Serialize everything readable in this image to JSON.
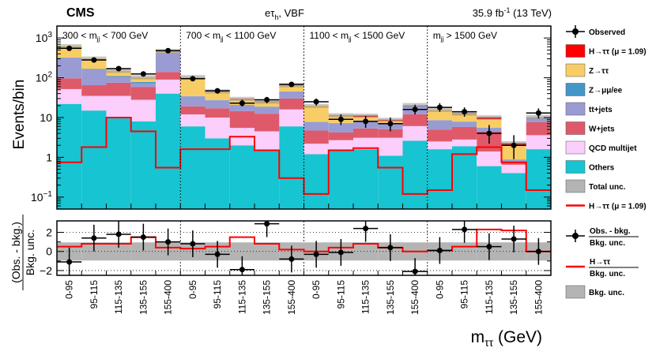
{
  "chart_data": {
    "type": "bar",
    "title": {
      "experiment": "CMS",
      "channel_main": "eτ",
      "channel_sub": "h",
      "channel_rest": ", VBF",
      "lumi_main": "35.9 fb",
      "lumi_sup": "-1",
      "lumi_rest": " (13 TeV)"
    },
    "xlabel_main": "m",
    "xlabel_sub": "ττ",
    "xlabel_rest": " (GeV)",
    "ylabel": "Events/bin",
    "ratio_ylabel_top": "(Obs. - bkg.)",
    "ratio_ylabel_bottom": "Bkg. unc.",
    "ylim_log": [
      0.05,
      2000
    ],
    "ratio_ylim": [
      -2.5,
      3.2
    ],
    "y_ticks": [
      {
        "v": 1000,
        "base": "10",
        "exp": "3"
      },
      {
        "v": 100,
        "base": "10",
        "exp": "2"
      },
      {
        "v": 10,
        "base": "10",
        "exp": ""
      },
      {
        "v": 1,
        "base": "1",
        "exp": ""
      },
      {
        "v": 0.1,
        "base": "10",
        "exp": "−1"
      }
    ],
    "ratio_ticks": [
      "2",
      "0",
      "−2"
    ],
    "ratio_tick_values": [
      2,
      0,
      -2
    ],
    "categories": [
      "0-95",
      "95-115",
      "115-135",
      "135-155",
      "155-400",
      "0-95",
      "95-115",
      "115-135",
      "135-155",
      "155-400",
      "0-95",
      "95-115",
      "115-135",
      "135-155",
      "155-400",
      "0-95",
      "95-115",
      "115-135",
      "135-155",
      "155-400"
    ],
    "regions": [
      {
        "pre": "300 < m",
        "sub": "jj",
        "post": " < 700 GeV"
      },
      {
        "pre": "700 < m",
        "sub": "jj",
        "post": " < 1100 GeV"
      },
      {
        "pre": "1100 < m",
        "sub": "jj",
        "post": " < 1500 GeV"
      },
      {
        "pre": "m",
        "sub": "jj",
        "post": " > 1500 GeV"
      }
    ],
    "stack_order": [
      "Others",
      "QCD multijet",
      "W+jets",
      "tt+jets",
      "Z→μμ/ee",
      "Z→ττ",
      "H→ττ"
    ],
    "series": [
      {
        "name": "Others",
        "color": "#17c4d1",
        "values": [
          22,
          15,
          10,
          8,
          40,
          6,
          3,
          2,
          1.5,
          6,
          1.2,
          1.5,
          1.6,
          1.1,
          2.6,
          1.6,
          1.9,
          0.6,
          0.4,
          1.6
        ]
      },
      {
        "name": "QCD multijet",
        "color": "#fbcefb",
        "values": [
          30,
          20,
          25,
          20,
          50,
          6,
          7,
          3.5,
          3,
          10,
          1,
          1.2,
          1.5,
          2,
          3.5,
          0.9,
          0.9,
          0.8,
          0.25,
          2
        ]
      },
      {
        "name": "W+jets",
        "color": "#de5a6a",
        "values": [
          45,
          30,
          40,
          30,
          50,
          7,
          7,
          9,
          8,
          14,
          2.5,
          1.5,
          2.2,
          2,
          6,
          2.5,
          3,
          3,
          0.1,
          4
        ]
      },
      {
        "name": "tt+jets",
        "color": "#9b9bd3",
        "values": [
          220,
          95,
          30,
          15,
          280,
          15,
          10,
          6,
          6,
          15,
          3,
          3,
          3,
          2,
          8,
          3.5,
          2,
          1,
          0.1,
          2
        ]
      },
      {
        "name": "Z→μμ/ee",
        "color": "#4496c8",
        "values": [
          6,
          6,
          5,
          5,
          6,
          0.5,
          0.3,
          0.3,
          0.3,
          0.5,
          0.1,
          0.1,
          0.1,
          0.1,
          0.1,
          0.1,
          0.1,
          0.1,
          0.02,
          0.1
        ]
      },
      {
        "name": "Z→ττ",
        "color": "#f8cd66",
        "values": [
          300,
          140,
          40,
          25,
          45,
          70,
          18,
          8,
          6,
          20,
          12,
          4,
          2,
          1.2,
          0.5,
          7,
          4.5,
          3.5,
          1.1,
          0.7
        ]
      },
      {
        "name": "H→ττ",
        "color": "#ff0000",
        "values": [
          0.1,
          0.3,
          0.5,
          0.4,
          0.1,
          0.1,
          0.3,
          0.8,
          0.5,
          0.05,
          0.03,
          0.2,
          0.8,
          0.4,
          0.02,
          0.05,
          0.3,
          1.2,
          0.3,
          0.01
        ]
      }
    ],
    "signal_line": {
      "name": "H→ττ (μ = 1.09)",
      "color": "#ff0000",
      "values": [
        0.75,
        1.8,
        10,
        4.5,
        0.55,
        1.6,
        1.6,
        3.3,
        1.5,
        0.3,
        0.12,
        1.5,
        1.7,
        0.55,
        0.12,
        0.15,
        1.2,
        1.8,
        0.75,
        0.15
      ]
    },
    "observed": [
      {
        "v": 550,
        "lo": 510,
        "hi": 590
      },
      {
        "v": 280,
        "lo": 255,
        "hi": 305
      },
      {
        "v": 170,
        "lo": 150,
        "hi": 190
      },
      {
        "v": 125,
        "lo": 110,
        "hi": 140
      },
      {
        "v": 480,
        "lo": 440,
        "hi": 520
      },
      {
        "v": 95,
        "lo": 85,
        "hi": 105
      },
      {
        "v": 47,
        "lo": 40,
        "hi": 54
      },
      {
        "v": 23,
        "lo": 19,
        "hi": 28
      },
      {
        "v": 28,
        "lo": 23,
        "hi": 33
      },
      {
        "v": 68,
        "lo": 60,
        "hi": 76
      },
      {
        "v": 25,
        "lo": 20,
        "hi": 30
      },
      {
        "v": 9,
        "lo": 6.5,
        "hi": 12
      },
      {
        "v": 8,
        "lo": 5.5,
        "hi": 11
      },
      {
        "v": 7,
        "lo": 4.5,
        "hi": 10
      },
      {
        "v": 16,
        "lo": 12,
        "hi": 21
      },
      {
        "v": 18,
        "lo": 14,
        "hi": 23
      },
      {
        "v": 14,
        "lo": 10.5,
        "hi": 18
      },
      {
        "v": 4,
        "lo": 2.2,
        "hi": 6.5
      },
      {
        "v": 2,
        "lo": 0.9,
        "hi": 3.6
      },
      {
        "v": 13,
        "lo": 9.5,
        "hi": 17
      }
    ],
    "total_unc_fraction": 0.12,
    "ratio": {
      "obs": [
        {
          "v": -1.1,
          "lo": -2.5,
          "hi": 0.4
        },
        {
          "v": 1.4,
          "lo": 0.0,
          "hi": 2.8
        },
        {
          "v": 1.8,
          "lo": 0.4,
          "hi": 3.2
        },
        {
          "v": 1.5,
          "lo": 0.1,
          "hi": 2.9
        },
        {
          "v": 1.0,
          "lo": -0.4,
          "hi": 2.4
        },
        {
          "v": 0.8,
          "lo": -0.6,
          "hi": 2.2
        },
        {
          "v": -0.3,
          "lo": -1.7,
          "hi": 1.1
        },
        {
          "v": -1.9,
          "lo": -2.5,
          "hi": -0.5
        },
        {
          "v": 2.9,
          "lo": 1.5,
          "hi": 3.2
        },
        {
          "v": -0.8,
          "lo": -2.2,
          "hi": 0.6
        },
        {
          "v": -0.3,
          "lo": -1.7,
          "hi": 1.1
        },
        {
          "v": -0.1,
          "lo": -1.5,
          "hi": 1.3
        },
        {
          "v": 2.4,
          "lo": 1.0,
          "hi": 3.2
        },
        {
          "v": 0.4,
          "lo": -1.0,
          "hi": 1.8
        },
        {
          "v": -2.1,
          "lo": -2.5,
          "hi": -0.7
        },
        {
          "v": 0.1,
          "lo": -1.3,
          "hi": 1.5
        },
        {
          "v": 2.3,
          "lo": 0.9,
          "hi": 3.2
        },
        {
          "v": 0.5,
          "lo": -0.9,
          "hi": 1.9
        },
        {
          "v": 1.3,
          "lo": -0.1,
          "hi": 2.7
        },
        {
          "v": 0.0,
          "lo": -1.4,
          "hi": 1.4
        }
      ],
      "signal": [
        0.5,
        0.8,
        0.8,
        1.5,
        0.4,
        0.3,
        0.5,
        1.5,
        0.8,
        0.2,
        0.0,
        0.4,
        0.8,
        0.4,
        0.0,
        0.1,
        0.5,
        2.3,
        2.2,
        0.0
      ],
      "band": [
        0.95,
        0.95,
        0.95,
        0.95,
        0.95,
        0.95,
        0.95,
        0.95,
        0.95,
        0.95,
        0.95,
        0.95,
        0.95,
        0.95,
        0.95,
        0.95,
        0.95,
        0.95,
        0.95,
        0.95
      ],
      "band_color": "#b4b4b4"
    },
    "legend": {
      "placement": "right",
      "items": [
        {
          "label": "Observed",
          "kind": "marker"
        },
        {
          "label": "H→ττ (μ = 1.09)",
          "kind": "box",
          "color": "#ff0000"
        },
        {
          "label": "Z→ττ",
          "kind": "box",
          "color": "#f8cd66"
        },
        {
          "label": "Z→μμ/ee",
          "kind": "box",
          "color": "#4496c8"
        },
        {
          "label": "tt+jets",
          "kind": "box",
          "color": "#9b9bd3"
        },
        {
          "label": "W+jets",
          "kind": "box",
          "color": "#de5a6a"
        },
        {
          "label": "QCD multijet",
          "kind": "box",
          "color": "#fbcefb"
        },
        {
          "label": "Others",
          "kind": "box",
          "color": "#17c4d1"
        },
        {
          "label": "Total unc.",
          "kind": "box",
          "color": "#b4b4b4"
        },
        {
          "label": "H→ττ (μ = 1.09)",
          "kind": "line",
          "color": "#ff0000"
        }
      ],
      "ratio_items": [
        {
          "label_top": "Obs. - bkg.",
          "label_bottom": "Bkg. unc.",
          "kind": "marker"
        },
        {
          "label_top": "H→ττ",
          "label_bottom": "Bkg. unc.",
          "kind": "line",
          "color": "#ff0000"
        },
        {
          "label": "Bkg. unc.",
          "kind": "box",
          "color": "#b4b4b4"
        }
      ]
    }
  }
}
